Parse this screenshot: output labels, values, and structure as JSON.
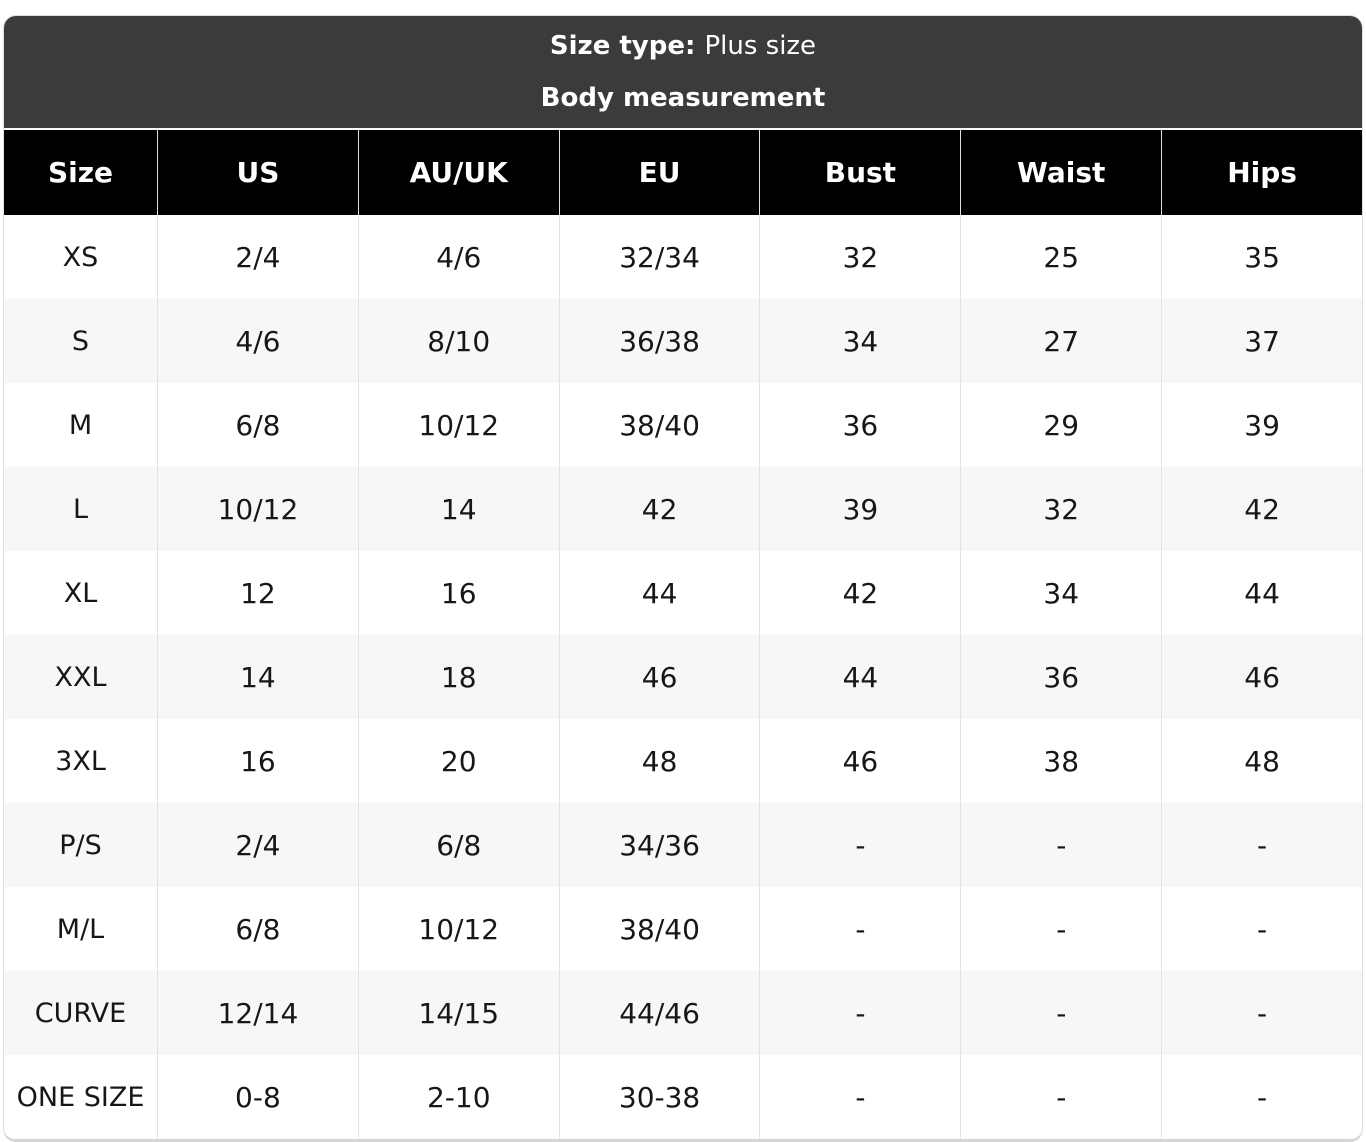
{
  "header": {
    "size_type_label": "Size type:",
    "size_type_value": "Plus size",
    "subtitle": "Body measurement"
  },
  "table": {
    "columns": [
      "Size",
      "US",
      "AU/UK",
      "EU",
      "Bust",
      "Waist",
      "Hips"
    ],
    "rows": [
      [
        "XS",
        "2/4",
        "4/6",
        "32/34",
        "32",
        "25",
        "35"
      ],
      [
        "S",
        "4/6",
        "8/10",
        "36/38",
        "34",
        "27",
        "37"
      ],
      [
        "M",
        "6/8",
        "10/12",
        "38/40",
        "36",
        "29",
        "39"
      ],
      [
        "L",
        "10/12",
        "14",
        "42",
        "39",
        "32",
        "42"
      ],
      [
        "XL",
        "12",
        "16",
        "44",
        "42",
        "34",
        "44"
      ],
      [
        "XXL",
        "14",
        "18",
        "46",
        "44",
        "36",
        "46"
      ],
      [
        "3XL",
        "16",
        "20",
        "48",
        "46",
        "38",
        "48"
      ],
      [
        "P/S",
        "2/4",
        "6/8",
        "34/36",
        "-",
        "-",
        "-"
      ],
      [
        "M/L",
        "6/8",
        "10/12",
        "38/40",
        "-",
        "-",
        "-"
      ],
      [
        "CURVE",
        "12/14",
        "14/15",
        "44/46",
        "-",
        "-",
        "-"
      ],
      [
        "ONE SIZE",
        "0-8",
        "2-10",
        "30-38",
        "-",
        "-",
        "-"
      ]
    ]
  },
  "colors": {
    "title_band_bg": "#3b3b3b",
    "column_header_bg": "#000000",
    "row_bg": "#ffffff",
    "row_alt_bg": "#f7f7f7",
    "separator": "#e3e3e3",
    "text_light": "#ffffff",
    "text_dark": "#171717"
  }
}
